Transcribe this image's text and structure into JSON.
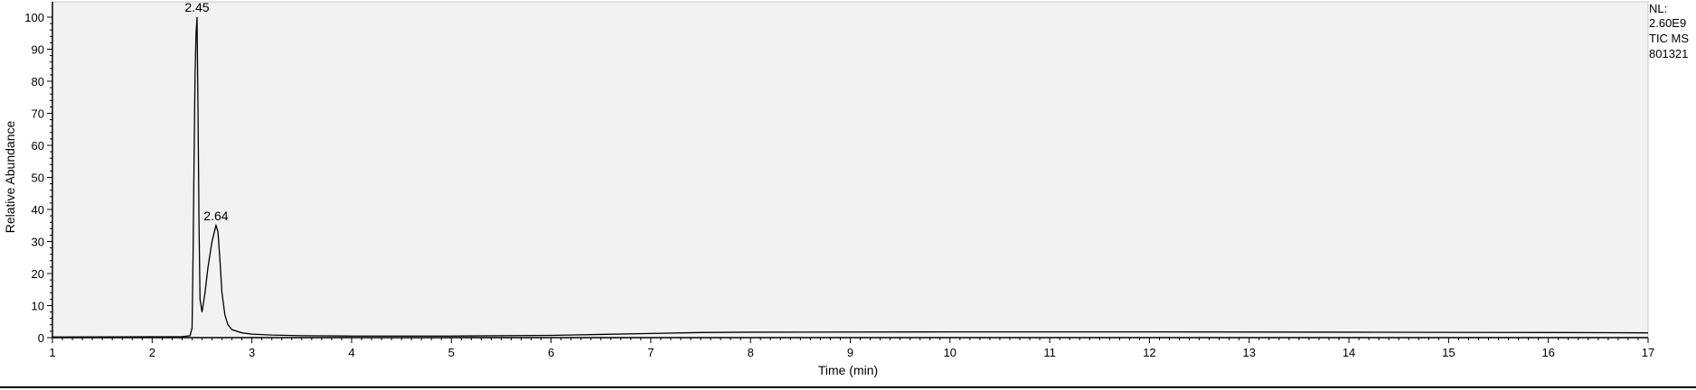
{
  "info": {
    "nl_label": "NL:",
    "nl_value": "2.60E9",
    "scan_filter": "TIC  MS",
    "file_id": "801321"
  },
  "chart_data": {
    "type": "line",
    "title": "",
    "xlabel": "Time (min)",
    "ylabel": "Relative Abundance",
    "xlim": [
      1,
      17
    ],
    "ylim": [
      0,
      100
    ],
    "xticks": [
      1,
      2,
      3,
      4,
      5,
      6,
      7,
      8,
      9,
      10,
      11,
      12,
      13,
      14,
      15,
      16,
      17
    ],
    "yticks": [
      0,
      10,
      20,
      30,
      40,
      50,
      60,
      70,
      80,
      90,
      100
    ],
    "grid": false,
    "legend": "none",
    "colors": {
      "plot_bg": "#f2f2f2",
      "line": "#000000"
    },
    "peak_labels": [
      {
        "x": 2.45,
        "y": 100,
        "text": "2.45"
      },
      {
        "x": 2.64,
        "y": 35,
        "text": "2.64"
      }
    ],
    "series": [
      {
        "x": [
          1,
          2.3,
          2.38,
          2.4,
          2.41,
          2.42,
          2.43,
          2.44,
          2.45,
          2.46,
          2.47,
          2.48,
          2.5,
          2.53,
          2.56,
          2.6,
          2.64,
          2.66,
          2.68,
          2.7,
          2.73,
          2.76,
          2.8,
          2.9,
          3.0,
          3.2,
          3.5,
          4.0,
          5.0,
          6.0,
          6.5,
          7.0,
          7.5,
          8.0,
          10.0,
          12.0,
          14.0,
          16.0,
          17.0
        ],
        "y": [
          0.2,
          0.3,
          0.6,
          3,
          25,
          55,
          82,
          95,
          100,
          70,
          35,
          12,
          8,
          14,
          22,
          30,
          35,
          33,
          24,
          14,
          7,
          4,
          2.5,
          1.5,
          1.1,
          0.8,
          0.6,
          0.5,
          0.5,
          0.7,
          1.0,
          1.3,
          1.6,
          1.7,
          1.8,
          1.8,
          1.7,
          1.6,
          1.5
        ]
      }
    ]
  }
}
